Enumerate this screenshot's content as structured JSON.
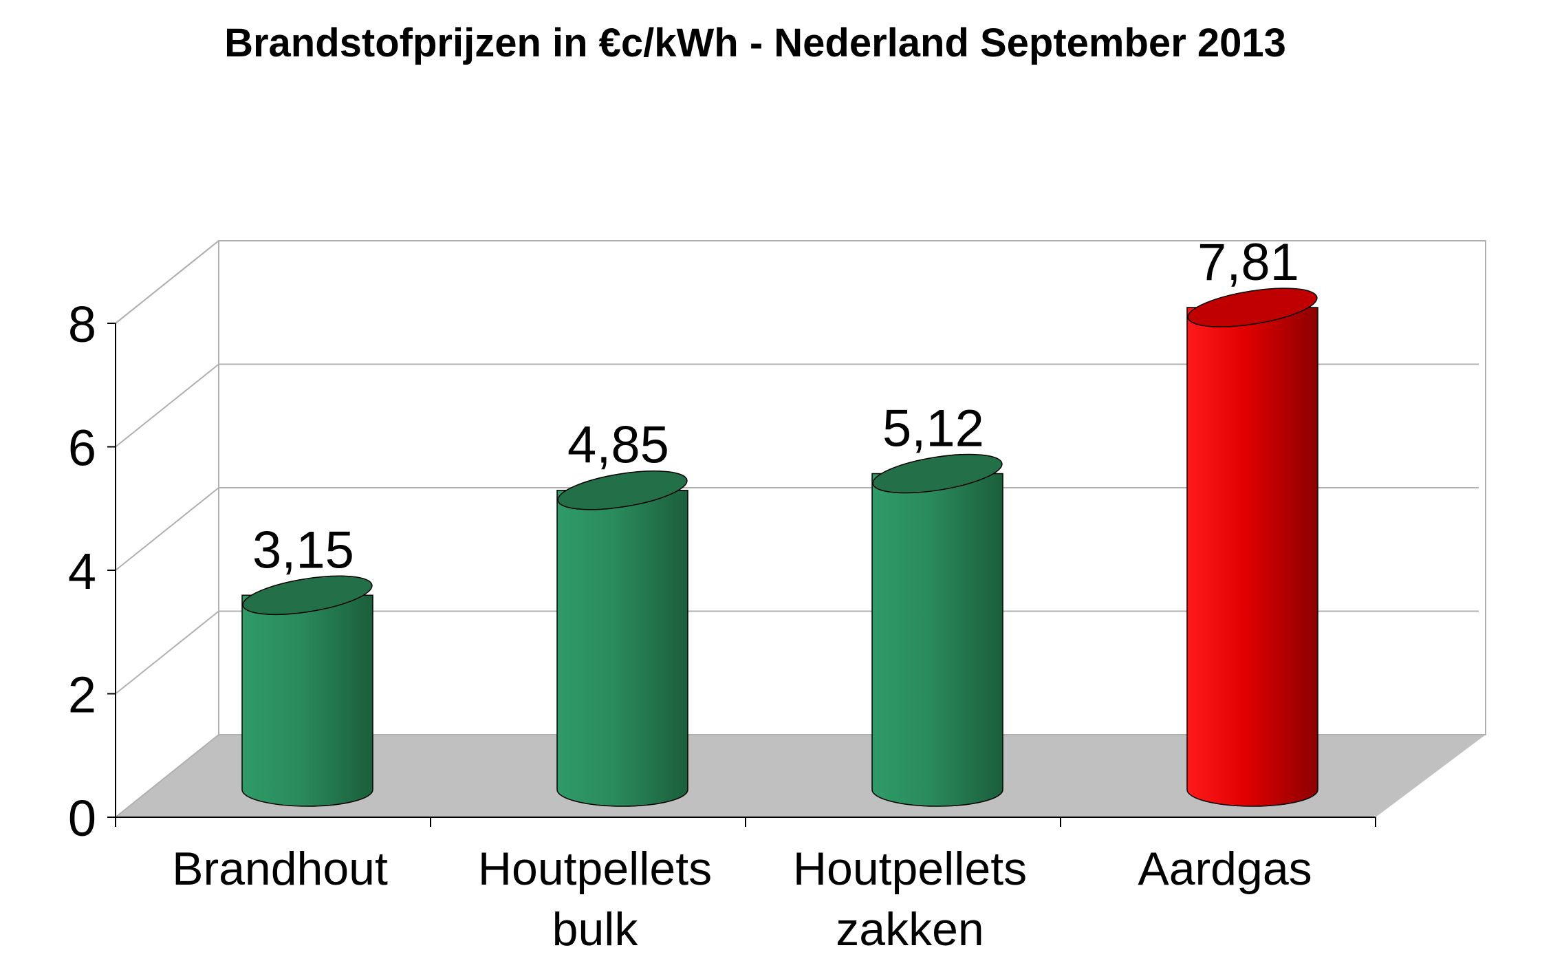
{
  "chart_data": {
    "type": "bar",
    "style": "3d-cylinder",
    "title": "Brandstofprijzen in €c/kWh - Nederland September 2013",
    "xlabel": "",
    "ylabel": "",
    "ylim": [
      0,
      8
    ],
    "yticks": [
      "0",
      "2",
      "4",
      "6",
      "8"
    ],
    "categories": [
      [
        "Brandhout"
      ],
      [
        "Houtpellets",
        "bulk"
      ],
      [
        "Houtpellets",
        "zakken"
      ],
      [
        "Aardgas"
      ]
    ],
    "values": [
      3.15,
      4.85,
      5.12,
      7.81
    ],
    "data_labels": [
      "3,15",
      "4,85",
      "5,12",
      "7,81"
    ],
    "bar_colors": [
      "#2e8b57",
      "#2e8b57",
      "#2e8b57",
      "#ff0000"
    ],
    "floor_color": "#c0c0c0",
    "grid": true,
    "legend": "none"
  }
}
